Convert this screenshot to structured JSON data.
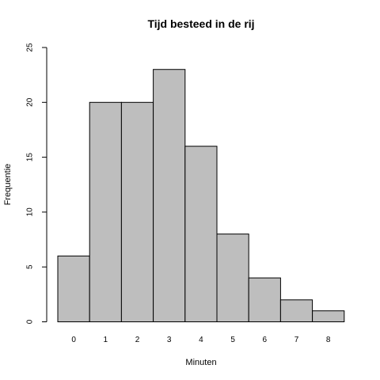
{
  "chart_data": {
    "type": "bar",
    "title": "Tijd besteed in de rij",
    "xlabel": "Minuten",
    "ylabel": "Frequentie",
    "categories": [
      "0",
      "1",
      "2",
      "3",
      "4",
      "5",
      "6",
      "7",
      "8"
    ],
    "values": [
      6,
      20,
      20,
      23,
      16,
      8,
      4,
      2,
      1
    ],
    "ylim": [
      0,
      25
    ],
    "yticks": [
      "0",
      "5",
      "10",
      "15",
      "20",
      "25"
    ],
    "grid": false,
    "colors": {
      "bar_fill": "#bebebe",
      "bar_stroke": "#000000"
    }
  }
}
